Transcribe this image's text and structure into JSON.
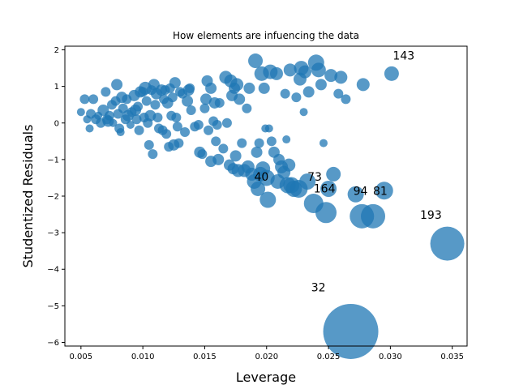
{
  "chart_data": {
    "type": "scatter",
    "title": "How elements are infuencing the data",
    "xlabel": "Leverage",
    "ylabel": "Studentized Residuals",
    "xlim": [
      0.0037,
      0.0362
    ],
    "ylim": [
      -6.1,
      2.1
    ],
    "xticks": [
      0.005,
      0.01,
      0.015,
      0.02,
      0.025,
      0.03,
      0.035
    ],
    "xtick_labels": [
      "0.005",
      "0.010",
      "0.015",
      "0.020",
      "0.025",
      "0.030",
      "0.035"
    ],
    "yticks": [
      -6,
      -5,
      -4,
      -3,
      -2,
      -1,
      0,
      1,
      2
    ],
    "ytick_labels": [
      "−6",
      "−5",
      "−4",
      "−3",
      "−2",
      "−1",
      "0",
      "1",
      "2"
    ],
    "grid": false,
    "marker_color": "#1f77b4",
    "marker_alpha": 0.75,
    "points": [
      {
        "x": 0.005,
        "y": 0.3,
        "s": 5
      },
      {
        "x": 0.0053,
        "y": 0.65,
        "s": 6
      },
      {
        "x": 0.0055,
        "y": 0.1,
        "s": 5
      },
      {
        "x": 0.0057,
        "y": -0.15,
        "s": 5
      },
      {
        "x": 0.0058,
        "y": 0.25,
        "s": 6
      },
      {
        "x": 0.006,
        "y": 0.65,
        "s": 6
      },
      {
        "x": 0.0062,
        "y": 0.1,
        "s": 6
      },
      {
        "x": 0.0064,
        "y": 0.2,
        "s": 5
      },
      {
        "x": 0.0066,
        "y": 0.0,
        "s": 6
      },
      {
        "x": 0.0068,
        "y": 0.35,
        "s": 7
      },
      {
        "x": 0.007,
        "y": 0.85,
        "s": 6
      },
      {
        "x": 0.0071,
        "y": 0.1,
        "s": 6
      },
      {
        "x": 0.0072,
        "y": 0.05,
        "s": 7
      },
      {
        "x": 0.0073,
        "y": 0.2,
        "s": 6
      },
      {
        "x": 0.0075,
        "y": 0.5,
        "s": 6
      },
      {
        "x": 0.0076,
        "y": 0.0,
        "s": 5
      },
      {
        "x": 0.0078,
        "y": 0.6,
        "s": 6
      },
      {
        "x": 0.0079,
        "y": 1.05,
        "s": 7
      },
      {
        "x": 0.008,
        "y": 0.25,
        "s": 6
      },
      {
        "x": 0.0081,
        "y": -0.15,
        "s": 6
      },
      {
        "x": 0.0082,
        "y": -0.25,
        "s": 5
      },
      {
        "x": 0.0083,
        "y": 0.7,
        "s": 7
      },
      {
        "x": 0.0084,
        "y": 0.4,
        "s": 6
      },
      {
        "x": 0.0086,
        "y": 0.1,
        "s": 6
      },
      {
        "x": 0.0087,
        "y": 0.65,
        "s": 6
      },
      {
        "x": 0.0088,
        "y": 0.2,
        "s": 7
      },
      {
        "x": 0.009,
        "y": -0.05,
        "s": 5
      },
      {
        "x": 0.0091,
        "y": 0.3,
        "s": 6
      },
      {
        "x": 0.0093,
        "y": 0.75,
        "s": 7
      },
      {
        "x": 0.0094,
        "y": 0.35,
        "s": 7
      },
      {
        "x": 0.0095,
        "y": 0.1,
        "s": 6
      },
      {
        "x": 0.0096,
        "y": 0.45,
        "s": 6
      },
      {
        "x": 0.0097,
        "y": -0.2,
        "s": 6
      },
      {
        "x": 0.0098,
        "y": 0.85,
        "s": 7
      },
      {
        "x": 0.01,
        "y": 0.85,
        "s": 6
      },
      {
        "x": 0.0101,
        "y": 0.15,
        "s": 6
      },
      {
        "x": 0.0102,
        "y": 0.95,
        "s": 8
      },
      {
        "x": 0.0103,
        "y": 0.6,
        "s": 6
      },
      {
        "x": 0.0104,
        "y": 0.0,
        "s": 6
      },
      {
        "x": 0.0105,
        "y": -0.6,
        "s": 6
      },
      {
        "x": 0.0106,
        "y": 0.2,
        "s": 7
      },
      {
        "x": 0.0107,
        "y": 0.9,
        "s": 6
      },
      {
        "x": 0.0108,
        "y": -0.85,
        "s": 6
      },
      {
        "x": 0.0109,
        "y": 1.05,
        "s": 7
      },
      {
        "x": 0.011,
        "y": 0.5,
        "s": 6
      },
      {
        "x": 0.0111,
        "y": 0.8,
        "s": 7
      },
      {
        "x": 0.0112,
        "y": 0.15,
        "s": 6
      },
      {
        "x": 0.0113,
        "y": -0.15,
        "s": 6
      },
      {
        "x": 0.0115,
        "y": 0.9,
        "s": 7
      },
      {
        "x": 0.0116,
        "y": -0.2,
        "s": 6
      },
      {
        "x": 0.0117,
        "y": 0.65,
        "s": 6
      },
      {
        "x": 0.0118,
        "y": 0.9,
        "s": 6
      },
      {
        "x": 0.0119,
        "y": -0.3,
        "s": 6
      },
      {
        "x": 0.012,
        "y": 0.55,
        "s": 7
      },
      {
        "x": 0.0121,
        "y": -0.65,
        "s": 6
      },
      {
        "x": 0.0122,
        "y": 0.95,
        "s": 6
      },
      {
        "x": 0.0123,
        "y": 0.2,
        "s": 6
      },
      {
        "x": 0.0124,
        "y": 0.7,
        "s": 6
      },
      {
        "x": 0.0125,
        "y": -0.6,
        "s": 7
      },
      {
        "x": 0.0126,
        "y": 1.1,
        "s": 7
      },
      {
        "x": 0.0127,
        "y": 0.15,
        "s": 6
      },
      {
        "x": 0.0128,
        "y": -0.1,
        "s": 6
      },
      {
        "x": 0.0129,
        "y": -0.55,
        "s": 6
      },
      {
        "x": 0.013,
        "y": 0.85,
        "s": 6
      },
      {
        "x": 0.0132,
        "y": 0.8,
        "s": 6
      },
      {
        "x": 0.0134,
        "y": -0.25,
        "s": 6
      },
      {
        "x": 0.0136,
        "y": 0.6,
        "s": 7
      },
      {
        "x": 0.0137,
        "y": 0.9,
        "s": 7
      },
      {
        "x": 0.0138,
        "y": 0.95,
        "s": 6
      },
      {
        "x": 0.0139,
        "y": 0.35,
        "s": 6
      },
      {
        "x": 0.0142,
        "y": -0.1,
        "s": 6
      },
      {
        "x": 0.0145,
        "y": -0.05,
        "s": 6
      },
      {
        "x": 0.0146,
        "y": -0.8,
        "s": 7
      },
      {
        "x": 0.0148,
        "y": -0.85,
        "s": 6
      },
      {
        "x": 0.015,
        "y": 0.4,
        "s": 6
      },
      {
        "x": 0.0151,
        "y": 0.65,
        "s": 7
      },
      {
        "x": 0.0152,
        "y": 1.15,
        "s": 7
      },
      {
        "x": 0.0153,
        "y": -0.2,
        "s": 6
      },
      {
        "x": 0.0155,
        "y": 0.95,
        "s": 7
      },
      {
        "x": 0.0155,
        "y": -1.05,
        "s": 7
      },
      {
        "x": 0.0157,
        "y": 0.05,
        "s": 6
      },
      {
        "x": 0.0158,
        "y": 0.55,
        "s": 7
      },
      {
        "x": 0.0159,
        "y": -0.5,
        "s": 6
      },
      {
        "x": 0.016,
        "y": -0.05,
        "s": 6
      },
      {
        "x": 0.0161,
        "y": -1.0,
        "s": 7
      },
      {
        "x": 0.0162,
        "y": 0.55,
        "s": 6
      },
      {
        "x": 0.0165,
        "y": -0.7,
        "s": 6
      },
      {
        "x": 0.0167,
        "y": 1.25,
        "s": 8
      },
      {
        "x": 0.0168,
        "y": 0.0,
        "s": 6
      },
      {
        "x": 0.017,
        "y": -1.15,
        "s": 7
      },
      {
        "x": 0.0171,
        "y": 1.15,
        "s": 8
      },
      {
        "x": 0.0172,
        "y": 0.75,
        "s": 7
      },
      {
        "x": 0.0173,
        "y": -1.25,
        "s": 7
      },
      {
        "x": 0.0174,
        "y": 0.95,
        "s": 7
      },
      {
        "x": 0.0175,
        "y": -0.9,
        "s": 7
      },
      {
        "x": 0.0176,
        "y": 1.05,
        "s": 8
      },
      {
        "x": 0.0177,
        "y": -1.3,
        "s": 8
      },
      {
        "x": 0.0178,
        "y": 0.65,
        "s": 7
      },
      {
        "x": 0.018,
        "y": -0.55,
        "s": 6
      },
      {
        "x": 0.0182,
        "y": -1.3,
        "s": 8
      },
      {
        "x": 0.0184,
        "y": 0.4,
        "s": 6
      },
      {
        "x": 0.0185,
        "y": -1.2,
        "s": 8
      },
      {
        "x": 0.0186,
        "y": 0.95,
        "s": 7
      },
      {
        "x": 0.0188,
        "y": -1.4,
        "s": 8
      },
      {
        "x": 0.019,
        "y": -1.6,
        "s": 9
      },
      {
        "x": 0.0191,
        "y": 1.7,
        "s": 9
      },
      {
        "x": 0.0192,
        "y": -0.8,
        "s": 7
      },
      {
        "x": 0.0193,
        "y": -1.8,
        "s": 9
      },
      {
        "x": 0.0194,
        "y": -0.55,
        "s": 6
      },
      {
        "x": 0.0195,
        "y": -1.4,
        "s": 9
      },
      {
        "x": 0.0196,
        "y": 1.35,
        "s": 9
      },
      {
        "x": 0.0197,
        "y": -1.25,
        "s": 9
      },
      {
        "x": 0.0198,
        "y": 0.95,
        "s": 7
      },
      {
        "x": 0.0199,
        "y": -0.15,
        "s": 5
      },
      {
        "x": 0.02,
        "y": -1.5,
        "s": 10
      },
      {
        "x": 0.0201,
        "y": -2.1,
        "s": 10
      },
      {
        "x": 0.0202,
        "y": -0.15,
        "s": 5
      },
      {
        "x": 0.0203,
        "y": 1.4,
        "s": 9
      },
      {
        "x": 0.0204,
        "y": -0.5,
        "s": 6
      },
      {
        "x": 0.0206,
        "y": -0.8,
        "s": 7
      },
      {
        "x": 0.0208,
        "y": 1.35,
        "s": 8
      },
      {
        "x": 0.0209,
        "y": -1.6,
        "s": 9
      },
      {
        "x": 0.021,
        "y": -1.0,
        "s": 7
      },
      {
        "x": 0.0212,
        "y": -1.2,
        "s": 8
      },
      {
        "x": 0.0214,
        "y": -1.35,
        "s": 8
      },
      {
        "x": 0.0215,
        "y": 0.8,
        "s": 6
      },
      {
        "x": 0.0216,
        "y": -0.45,
        "s": 5
      },
      {
        "x": 0.0217,
        "y": -1.7,
        "s": 10
      },
      {
        "x": 0.0218,
        "y": -1.15,
        "s": 8
      },
      {
        "x": 0.0219,
        "y": 1.45,
        "s": 8
      },
      {
        "x": 0.022,
        "y": -1.7,
        "s": 10
      },
      {
        "x": 0.0222,
        "y": -1.8,
        "s": 10
      },
      {
        "x": 0.0224,
        "y": 0.7,
        "s": 6
      },
      {
        "x": 0.0226,
        "y": -1.8,
        "s": 11
      },
      {
        "x": 0.0227,
        "y": 1.2,
        "s": 8
      },
      {
        "x": 0.0228,
        "y": 1.5,
        "s": 9
      },
      {
        "x": 0.023,
        "y": 0.3,
        "s": 5
      },
      {
        "x": 0.0231,
        "y": 1.4,
        "s": 8
      },
      {
        "x": 0.0233,
        "y": -1.6,
        "s": 10
      },
      {
        "x": 0.0234,
        "y": 0.85,
        "s": 7
      },
      {
        "x": 0.0238,
        "y": -2.2,
        "s": 12
      },
      {
        "x": 0.024,
        "y": 1.65,
        "s": 10
      },
      {
        "x": 0.0242,
        "y": 1.45,
        "s": 9
      },
      {
        "x": 0.0244,
        "y": 1.05,
        "s": 7
      },
      {
        "x": 0.0246,
        "y": -0.55,
        "s": 5
      },
      {
        "x": 0.0248,
        "y": -2.45,
        "s": 13
      },
      {
        "x": 0.025,
        "y": -1.8,
        "s": 10
      },
      {
        "x": 0.0252,
        "y": 1.3,
        "s": 8
      },
      {
        "x": 0.0254,
        "y": -1.4,
        "s": 9
      },
      {
        "x": 0.0258,
        "y": 0.8,
        "s": 6
      },
      {
        "x": 0.026,
        "y": 1.25,
        "s": 8
      },
      {
        "x": 0.0264,
        "y": 0.65,
        "s": 6
      },
      {
        "x": 0.0268,
        "y": -5.7,
        "s": 34
      },
      {
        "x": 0.0272,
        "y": -1.95,
        "s": 10
      },
      {
        "x": 0.0277,
        "y": -2.55,
        "s": 15
      },
      {
        "x": 0.0278,
        "y": 1.05,
        "s": 8
      },
      {
        "x": 0.0286,
        "y": -2.55,
        "s": 15
      },
      {
        "x": 0.0295,
        "y": -1.85,
        "s": 11
      },
      {
        "x": 0.0301,
        "y": 1.35,
        "s": 9
      },
      {
        "x": 0.0346,
        "y": -3.3,
        "s": 21
      }
    ],
    "annotations": [
      {
        "text": "143",
        "x": 0.0302,
        "y": 1.73
      },
      {
        "text": "40",
        "x": 0.019,
        "y": -1.58
      },
      {
        "text": "73",
        "x": 0.0233,
        "y": -1.58
      },
      {
        "text": "164",
        "x": 0.0238,
        "y": -1.9
      },
      {
        "text": "94",
        "x": 0.027,
        "y": -1.97
      },
      {
        "text": "81",
        "x": 0.0286,
        "y": -1.97
      },
      {
        "text": "193",
        "x": 0.0324,
        "y": -2.62
      },
      {
        "text": "32",
        "x": 0.0236,
        "y": -4.6
      }
    ]
  }
}
